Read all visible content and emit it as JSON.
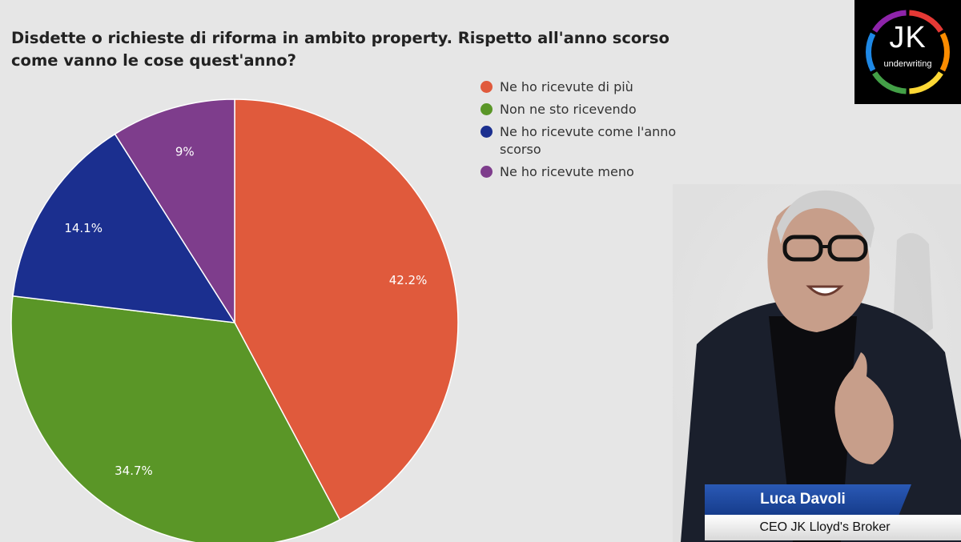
{
  "chart_data": {
    "type": "pie",
    "title": "Disdette o richieste di riforma in ambito property. Rispetto all'anno scorso\ncome vanno le cose quest'anno?",
    "slices": [
      {
        "label": "Ne ho ricevute di più",
        "value": 42.2,
        "display": "42.2%",
        "color": "#e05a3c"
      },
      {
        "label": "Non ne sto ricevendo",
        "value": 34.7,
        "display": "34.7%",
        "color": "#5a9627"
      },
      {
        "label": "Ne ho ricevute come l'anno scorso",
        "value": 14.1,
        "display": "14.1%",
        "color": "#1b2f8f"
      },
      {
        "label": "Ne ho ricevute meno",
        "value": 9,
        "display": "9%",
        "color": "#7e3d8c"
      }
    ],
    "legend_position": "top-right"
  },
  "logo": {
    "text": "JK",
    "subtext": "underwriting",
    "ring_colors": [
      "#e53935",
      "#fb8c00",
      "#fdd835",
      "#43a047",
      "#1e88e5",
      "#8e24aa"
    ]
  },
  "presenter": {
    "name": "Luca Davoli",
    "role": "CEO JK Lloyd's Broker"
  }
}
